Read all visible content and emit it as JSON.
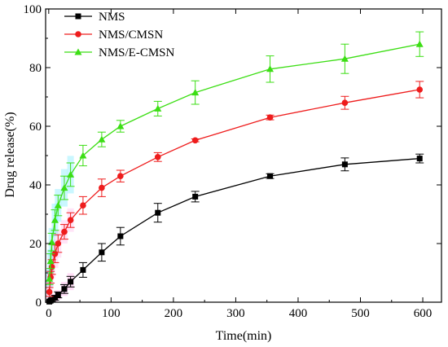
{
  "chart_data": {
    "type": "line",
    "title": "",
    "xlabel": "Time(min)",
    "ylabel": "Drug release(%)",
    "xlim": [
      -5,
      630
    ],
    "ylim": [
      0,
      100
    ],
    "xticks": [
      0,
      100,
      200,
      300,
      400,
      500,
      600
    ],
    "yticks": [
      0,
      20,
      40,
      60,
      80,
      100
    ],
    "grid": false,
    "legend_position": "top-left",
    "x": [
      1,
      3,
      5,
      10,
      15,
      25,
      35,
      55,
      85,
      115,
      175,
      235,
      355,
      475,
      595
    ],
    "series": [
      {
        "name": "NMS",
        "color": "#000000",
        "marker": "square",
        "values": [
          0.2,
          0.5,
          0.8,
          1.5,
          2.5,
          4.5,
          7,
          11,
          17,
          22.5,
          30.5,
          36,
          43,
          47,
          49
        ],
        "errors": [
          0.3,
          0.4,
          0.5,
          0.8,
          1.0,
          1.5,
          1.8,
          2.5,
          3.0,
          3.0,
          3.2,
          1.8,
          0.8,
          2.2,
          1.5
        ]
      },
      {
        "name": "NMS/CMSN",
        "color": "#ee1c1c",
        "marker": "circle",
        "values": [
          3.5,
          8.5,
          12,
          16.5,
          20,
          24,
          28,
          33,
          39,
          43,
          49.5,
          55.2,
          63,
          68,
          72.5
        ],
        "errors": [
          1.5,
          2.0,
          2.5,
          3.0,
          3.0,
          2.5,
          2.5,
          3.0,
          3.0,
          2.0,
          1.5,
          0.5,
          0.8,
          2.2,
          2.8
        ]
      },
      {
        "name": "NMS/E-CMSN",
        "color": "#3cde14",
        "marker": "triangle",
        "values": [
          8,
          14,
          20.5,
          28,
          33,
          39,
          43.5,
          50,
          55.5,
          60,
          66,
          71.5,
          79.5,
          83,
          88
        ],
        "errors": [
          2.0,
          2.5,
          3.0,
          3.5,
          3.5,
          4.0,
          4.0,
          3.5,
          2.5,
          2.0,
          2.5,
          4.0,
          4.5,
          5.0,
          4.2
        ]
      }
    ]
  }
}
